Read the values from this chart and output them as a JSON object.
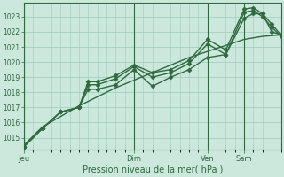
{
  "background_color": "#cce8dc",
  "grid_color": "#99ccbb",
  "line_color": "#2d6b3c",
  "title": "Pression niveau de la mer( hPa )",
  "ylim": [
    1014.2,
    1023.9
  ],
  "yticks": [
    1015,
    1016,
    1017,
    1018,
    1019,
    1020,
    1021,
    1022,
    1023
  ],
  "day_labels": [
    "Jeu",
    "Dim",
    "Ven",
    "Sam"
  ],
  "day_positions": [
    0,
    72,
    120,
    144
  ],
  "total_hours": 168,
  "series": [
    {
      "x": [
        0,
        12,
        24,
        36,
        48,
        60,
        72,
        84,
        96,
        108,
        120,
        132,
        144,
        156,
        168
      ],
      "y": [
        1014.5,
        1015.7,
        1016.4,
        1017.1,
        1017.7,
        1018.3,
        1018.8,
        1019.3,
        1019.8,
        1020.3,
        1020.7,
        1021.1,
        1021.5,
        1021.7,
        1021.8
      ],
      "marker": null,
      "linewidth": 1.0
    },
    {
      "x": [
        0,
        12,
        24,
        36,
        42,
        48,
        60,
        72,
        84,
        96,
        108,
        120,
        132,
        144,
        150,
        156,
        162,
        168
      ],
      "y": [
        1014.4,
        1015.6,
        1016.7,
        1017.0,
        1018.2,
        1018.2,
        1018.5,
        1019.5,
        1018.4,
        1019.0,
        1019.5,
        1020.3,
        1020.5,
        1022.9,
        1023.2,
        1023.2,
        1022.0,
        1021.8
      ],
      "marker": "D",
      "markersize": 2.5,
      "linewidth": 1.0
    },
    {
      "x": [
        0,
        12,
        24,
        36,
        42,
        48,
        60,
        72,
        84,
        96,
        108,
        120,
        132,
        144,
        150,
        156,
        162,
        168
      ],
      "y": [
        1014.4,
        1015.6,
        1016.7,
        1017.0,
        1018.7,
        1018.7,
        1019.1,
        1019.8,
        1019.3,
        1019.5,
        1020.1,
        1021.5,
        1020.8,
        1023.5,
        1023.6,
        1023.2,
        1022.5,
        1021.8
      ],
      "marker": "D",
      "markersize": 2.5,
      "linewidth": 1.0
    },
    {
      "x": [
        0,
        12,
        24,
        36,
        42,
        48,
        60,
        72,
        84,
        96,
        108,
        120,
        132,
        144,
        150,
        156,
        162,
        168
      ],
      "y": [
        1014.4,
        1015.6,
        1016.7,
        1017.0,
        1018.5,
        1018.5,
        1018.9,
        1019.7,
        1019.0,
        1019.3,
        1019.9,
        1021.2,
        1020.5,
        1023.3,
        1023.4,
        1023.0,
        1022.3,
        1021.7
      ],
      "marker": "D",
      "markersize": 2.5,
      "linewidth": 1.0
    }
  ]
}
